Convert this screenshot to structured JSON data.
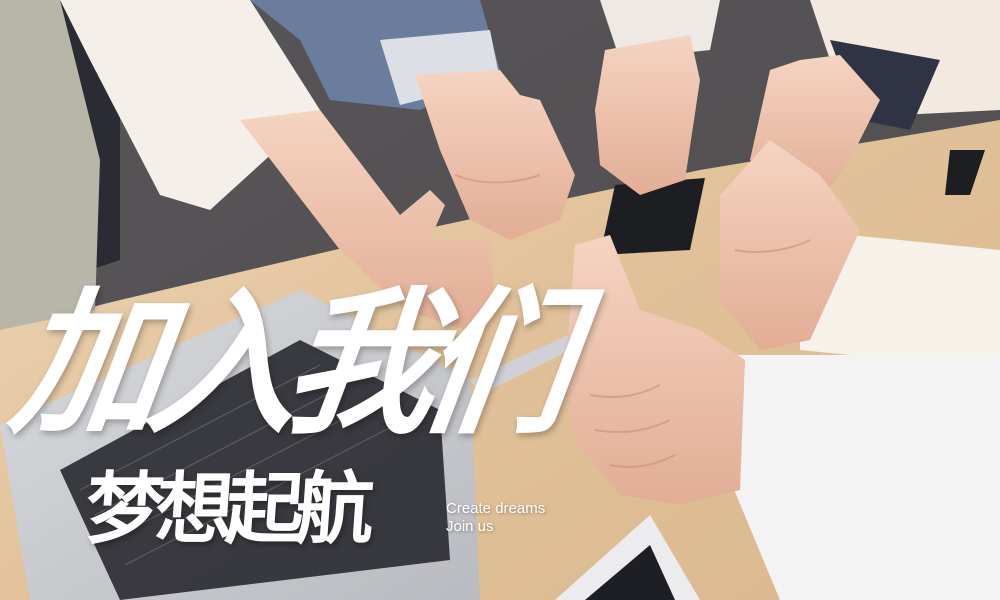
{
  "headline": {
    "line1": "加入我们",
    "line2": "梦想起航"
  },
  "tagline": {
    "line1": "Create dreams",
    "line2": "Join us"
  },
  "colors": {
    "text": "#ffffff",
    "table": "#e3c8a2"
  }
}
